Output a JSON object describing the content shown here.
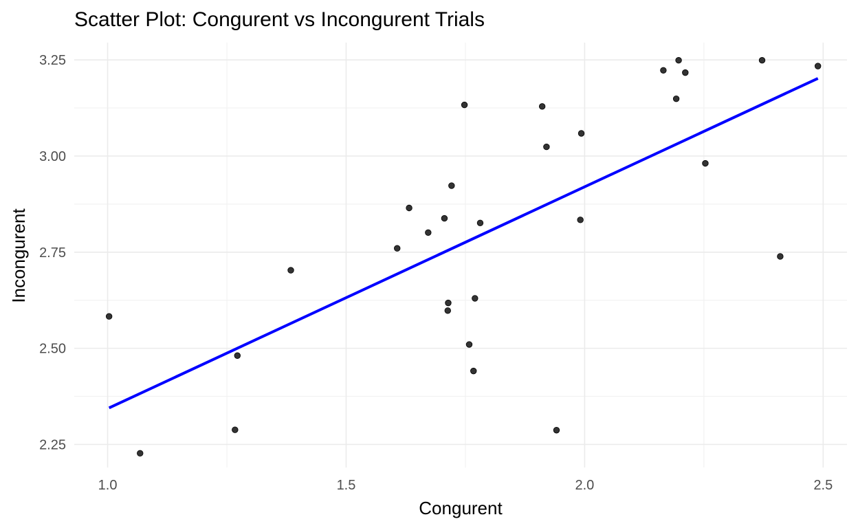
{
  "chart_data": {
    "type": "scatter",
    "title": "Scatter Plot: Congurent vs Incongurent Trials",
    "xlabel": "Congurent",
    "ylabel": "Incongurent",
    "xlim": [
      0.93,
      2.55
    ],
    "ylim": [
      2.19,
      3.295
    ],
    "x_ticks": [
      1.0,
      1.5,
      2.0,
      2.5
    ],
    "x_tick_labels": [
      "1.0",
      "1.5",
      "2.0",
      "2.5"
    ],
    "y_ticks": [
      2.25,
      2.5,
      2.75,
      3.0,
      3.25
    ],
    "y_tick_labels": [
      "2.25",
      "2.50",
      "2.75",
      "3.00",
      "3.25"
    ],
    "grid": true,
    "points": [
      {
        "x": 1.003,
        "y": 2.583
      },
      {
        "x": 1.068,
        "y": 2.227
      },
      {
        "x": 1.267,
        "y": 2.288
      },
      {
        "x": 1.272,
        "y": 2.481
      },
      {
        "x": 1.384,
        "y": 2.703
      },
      {
        "x": 1.607,
        "y": 2.76
      },
      {
        "x": 1.632,
        "y": 2.865
      },
      {
        "x": 1.672,
        "y": 2.801
      },
      {
        "x": 1.706,
        "y": 2.838
      },
      {
        "x": 1.713,
        "y": 2.598
      },
      {
        "x": 1.714,
        "y": 2.618
      },
      {
        "x": 1.721,
        "y": 2.923
      },
      {
        "x": 1.748,
        "y": 3.133
      },
      {
        "x": 1.758,
        "y": 2.51
      },
      {
        "x": 1.767,
        "y": 2.441
      },
      {
        "x": 1.77,
        "y": 2.63
      },
      {
        "x": 1.781,
        "y": 2.826
      },
      {
        "x": 1.911,
        "y": 3.129
      },
      {
        "x": 1.92,
        "y": 3.024
      },
      {
        "x": 1.941,
        "y": 2.287
      },
      {
        "x": 1.991,
        "y": 2.834
      },
      {
        "x": 1.993,
        "y": 3.059
      },
      {
        "x": 2.165,
        "y": 3.223
      },
      {
        "x": 2.192,
        "y": 3.149
      },
      {
        "x": 2.197,
        "y": 3.249
      },
      {
        "x": 2.211,
        "y": 3.217
      },
      {
        "x": 2.253,
        "y": 2.981
      },
      {
        "x": 2.372,
        "y": 3.249
      },
      {
        "x": 2.41,
        "y": 2.739
      },
      {
        "x": 2.489,
        "y": 3.234
      }
    ],
    "trend_line": {
      "x": [
        1.003,
        2.489
      ],
      "y": [
        2.345,
        3.202
      ],
      "color": "#0000ff"
    },
    "point_color": "#333333"
  }
}
